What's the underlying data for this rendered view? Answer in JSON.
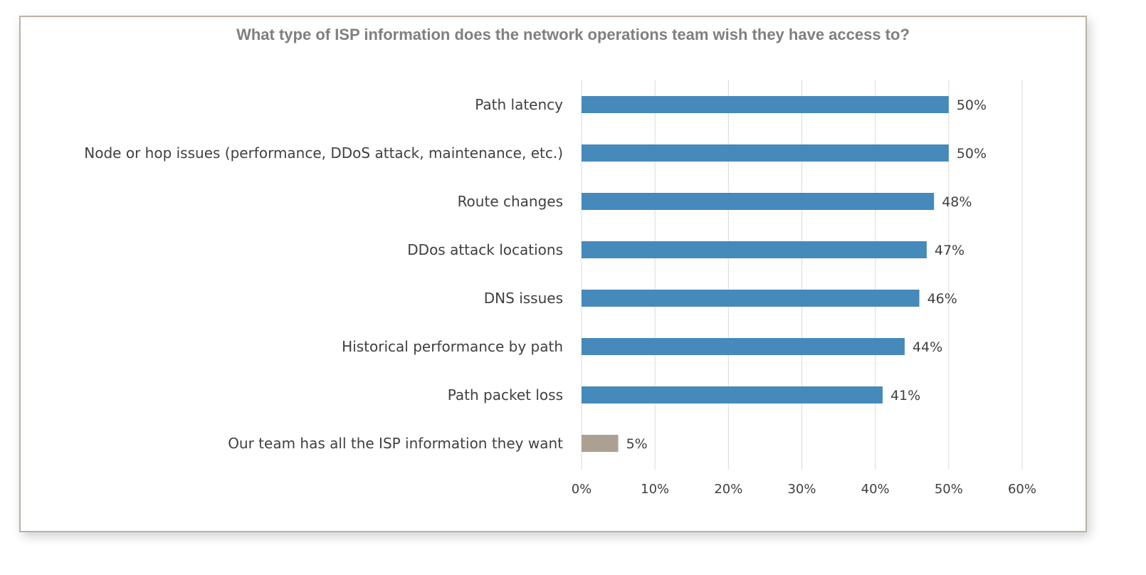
{
  "chart_data": {
    "type": "bar",
    "orientation": "horizontal",
    "title": "What type of ISP information does the network operations team wish they have access to?",
    "categories": [
      "Path latency",
      "Node or hop issues (performance, DDoS attack, maintenance, etc.)",
      "Route changes",
      "DDos attack locations",
      "DNS issues",
      "Historical performance by path",
      "Path packet loss",
      "Our team has all the ISP information they want"
    ],
    "values": [
      50,
      50,
      48,
      47,
      46,
      44,
      41,
      5
    ],
    "data_labels": [
      "50%",
      "50%",
      "48%",
      "47%",
      "46%",
      "44%",
      "41%",
      "5%"
    ],
    "bar_colors": [
      "#4689bb",
      "#4689bb",
      "#4689bb",
      "#4689bb",
      "#4689bb",
      "#4689bb",
      "#4689bb",
      "#aba193"
    ],
    "xlim": [
      0,
      60
    ],
    "xticks": [
      "0%",
      "10%",
      "20%",
      "30%",
      "40%",
      "50%",
      "60%"
    ],
    "xlabel": "",
    "ylabel": "",
    "grid": "vertical",
    "legend": "none"
  }
}
